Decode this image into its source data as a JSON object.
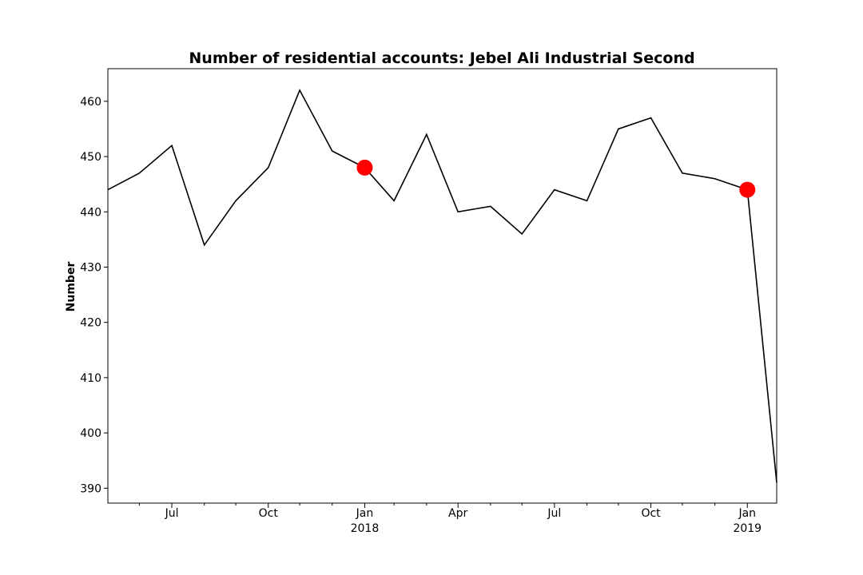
{
  "chart_data": {
    "type": "line",
    "title": "Number of residential accounts: Jebel Ali Industrial Second",
    "xlabel": "",
    "ylabel": "Number",
    "ylim": [
      387.3,
      465.9
    ],
    "xlim": [
      "2017-05-31",
      "2019-02-28"
    ],
    "grid": false,
    "legend": "none",
    "y_ticks": [
      390,
      400,
      410,
      420,
      430,
      440,
      450,
      460
    ],
    "x_ticks": [
      {
        "date": "2017-07-31",
        "label": "Jul",
        "sublabel": ""
      },
      {
        "date": "2017-10-31",
        "label": "Oct",
        "sublabel": ""
      },
      {
        "date": "2018-01-31",
        "label": "Jan",
        "sublabel": "2018"
      },
      {
        "date": "2018-04-30",
        "label": "Apr",
        "sublabel": ""
      },
      {
        "date": "2018-07-31",
        "label": "Jul",
        "sublabel": ""
      },
      {
        "date": "2018-10-31",
        "label": "Oct",
        "sublabel": ""
      },
      {
        "date": "2019-01-31",
        "label": "Jan",
        "sublabel": "2019"
      }
    ],
    "minor_ticks": [
      "2017-06-30",
      "2017-08-31",
      "2017-09-30",
      "2017-11-30",
      "2017-12-31",
      "2018-02-28",
      "2018-03-31",
      "2018-05-31",
      "2018-06-30",
      "2018-08-31",
      "2018-09-30",
      "2018-11-30",
      "2018-12-31"
    ],
    "series": [
      {
        "color": "#000000",
        "points": [
          {
            "x": "2017-05-31",
            "y": 444
          },
          {
            "x": "2017-06-30",
            "y": 447
          },
          {
            "x": "2017-07-31",
            "y": 452
          },
          {
            "x": "2017-08-31",
            "y": 434
          },
          {
            "x": "2017-09-30",
            "y": 442
          },
          {
            "x": "2017-10-31",
            "y": 448
          },
          {
            "x": "2017-11-30",
            "y": 462
          },
          {
            "x": "2017-12-31",
            "y": 451
          },
          {
            "x": "2018-01-31",
            "y": 448
          },
          {
            "x": "2018-02-28",
            "y": 442
          },
          {
            "x": "2018-03-31",
            "y": 454
          },
          {
            "x": "2018-04-30",
            "y": 440
          },
          {
            "x": "2018-05-31",
            "y": 441
          },
          {
            "x": "2018-06-30",
            "y": 436
          },
          {
            "x": "2018-07-31",
            "y": 444
          },
          {
            "x": "2018-08-31",
            "y": 442
          },
          {
            "x": "2018-09-30",
            "y": 455
          },
          {
            "x": "2018-10-31",
            "y": 457
          },
          {
            "x": "2018-11-30",
            "y": 447
          },
          {
            "x": "2018-12-31",
            "y": 446
          },
          {
            "x": "2019-01-31",
            "y": 444
          },
          {
            "x": "2019-02-28",
            "y": 391
          }
        ]
      }
    ],
    "highlights": [
      {
        "x": "2018-01-31",
        "y": 448,
        "color": "#ff0000"
      },
      {
        "x": "2019-01-31",
        "y": 444,
        "color": "#ff0000"
      }
    ]
  }
}
